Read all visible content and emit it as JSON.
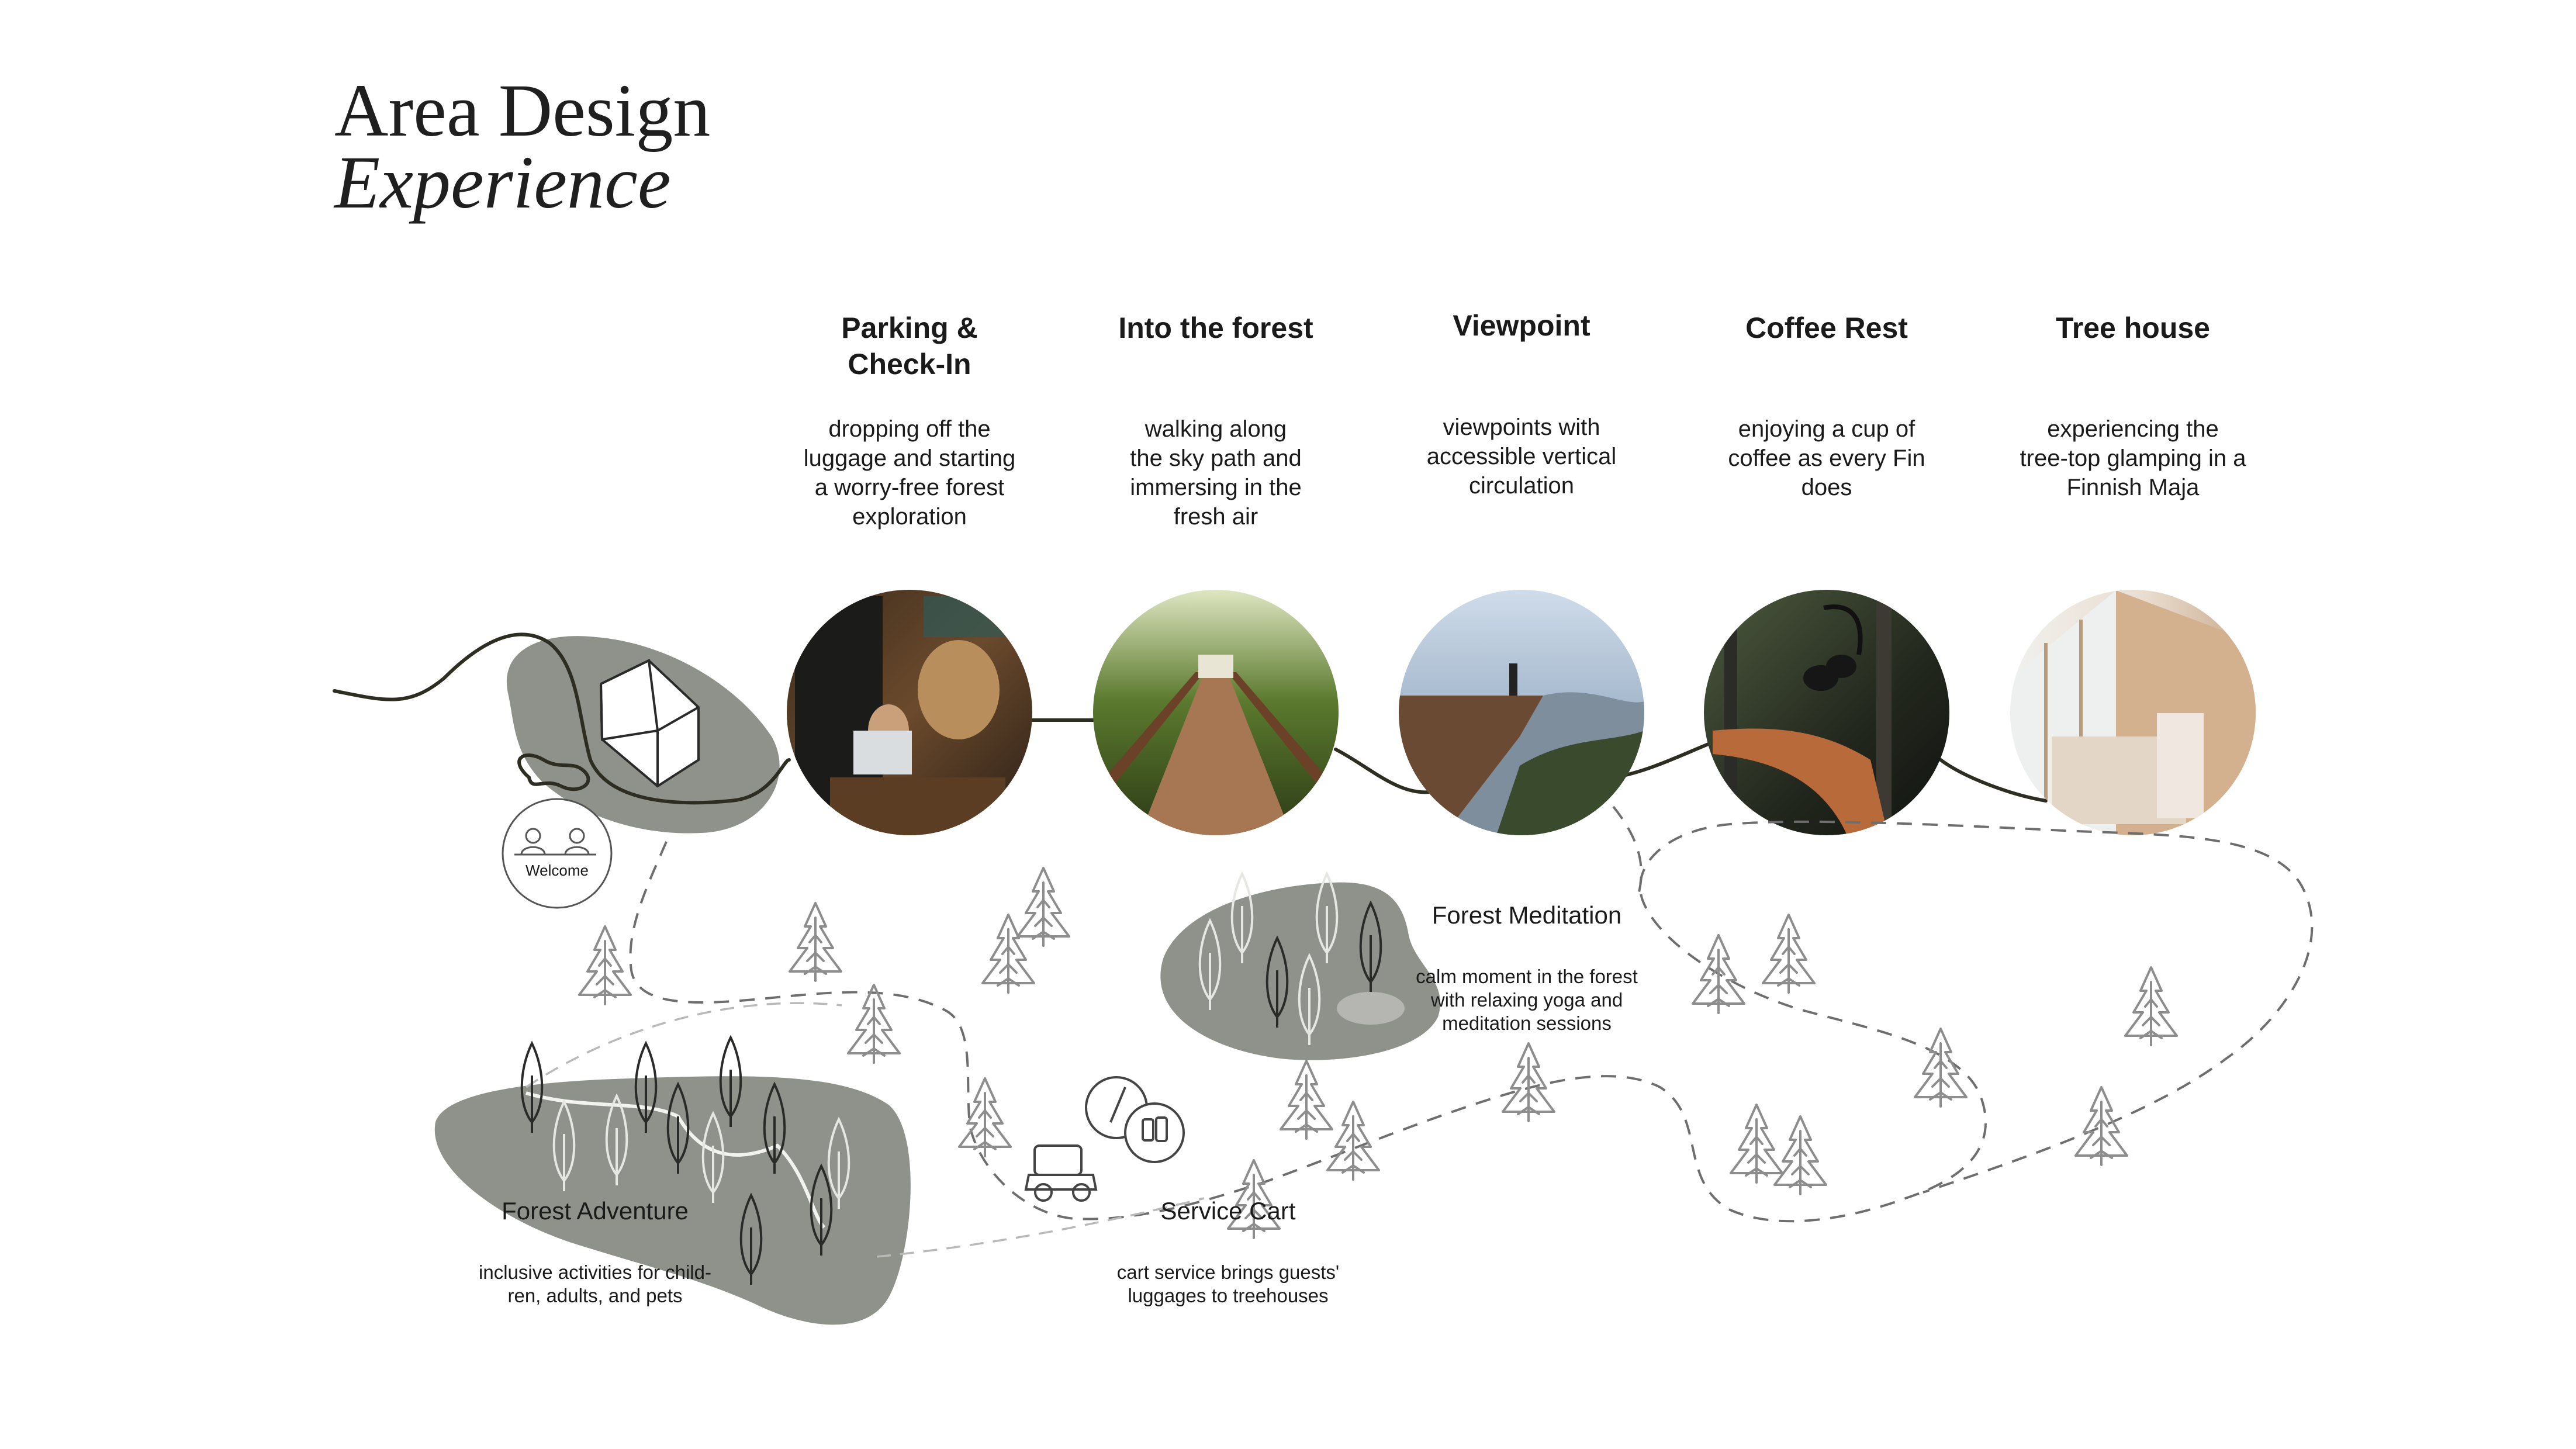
{
  "title": {
    "line1": "Area Design",
    "line2": "Experience"
  },
  "stages": [
    {
      "heading_line1": "Parking &",
      "heading_line2": "Check-In",
      "description": [
        "dropping off the",
        "luggage and starting",
        "a worry-free forest",
        "exploration"
      ],
      "photo": "reception-desk-photo"
    },
    {
      "heading_line1": "Into the forest",
      "heading_line2": "",
      "description": [
        "walking along",
        "the sky path and",
        "immersing in the",
        "fresh air"
      ],
      "photo": "sky-path-bridge-photo"
    },
    {
      "heading_line1": "Viewpoint",
      "heading_line2": "",
      "description": [
        "viewpoints with",
        "accessible vertical",
        "circulation"
      ],
      "photo": "mountain-viewpoint-deck-photo"
    },
    {
      "heading_line1": "Coffee Rest",
      "heading_line2": "",
      "description": [
        "enjoying a cup of",
        "coffee as every Fin",
        "does"
      ],
      "photo": "forest-coffee-bar-photo"
    },
    {
      "heading_line1": "Tree house",
      "heading_line2": "",
      "description": [
        "experiencing the",
        "tree-top glamping in a",
        "Finnish Maja"
      ],
      "photo": "treehouse-bedroom-photo"
    }
  ],
  "welcome_label": "Welcome",
  "zones": {
    "forest_meditation": {
      "title": "Forest Meditation",
      "description": [
        "calm moment in the forest",
        "with relaxing yoga and",
        "meditation sessions"
      ]
    },
    "forest_adventure": {
      "title": "Forest Adventure",
      "description": [
        "inclusive activities for child-",
        "ren, adults, and pets"
      ]
    },
    "service_cart": {
      "title": "Service Cart",
      "description": [
        "cart service brings guests'",
        "luggages to treehouses"
      ]
    }
  },
  "colors": {
    "zone_fill": "#8f918b",
    "path_line": "#2d2d22",
    "tree_stroke": "#8d8d8d",
    "text": "#1a1a1a"
  }
}
